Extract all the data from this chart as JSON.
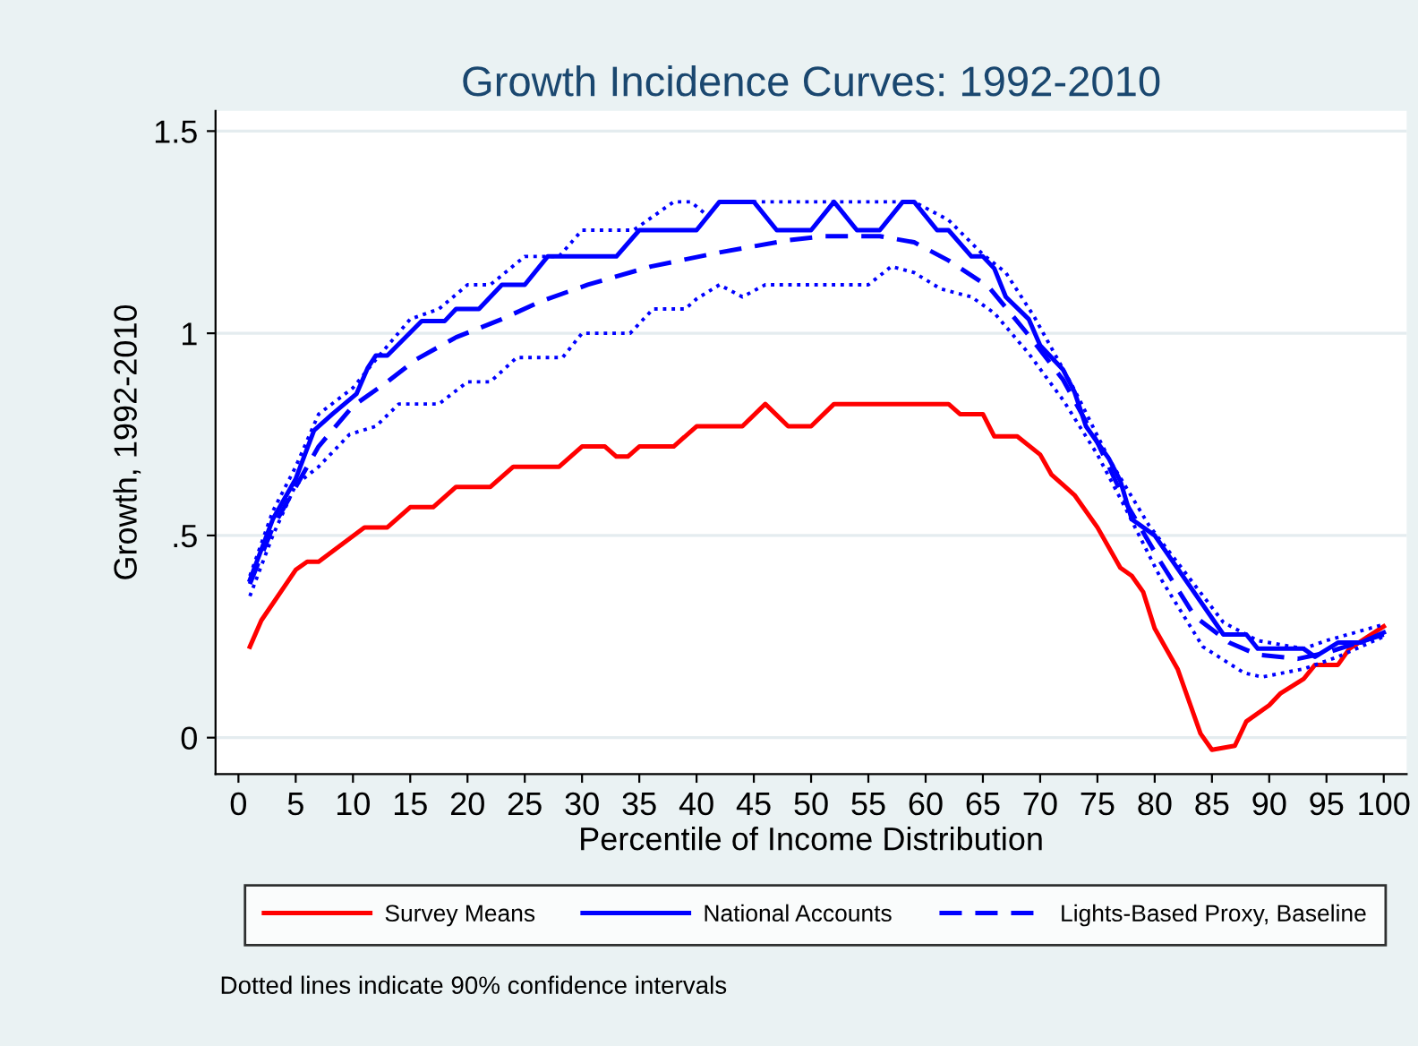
{
  "chart_data": {
    "type": "line",
    "title": "Growth Incidence Curves: 1992-2010",
    "xlabel": "Percentile of Income Distribution",
    "ylabel": "Growth, 1992-2010",
    "xlim": [
      -2,
      102
    ],
    "xticks": [
      0,
      5,
      10,
      15,
      20,
      25,
      30,
      35,
      40,
      45,
      50,
      55,
      60,
      65,
      70,
      75,
      80,
      85,
      90,
      95,
      100
    ],
    "ylim": [
      -0.09,
      1.55
    ],
    "yticks": [
      0,
      {
        "value": 0.5,
        "label": ".5"
      },
      1,
      1.5
    ],
    "grid": "y",
    "legend": "bottom",
    "marker": "none",
    "annotations": [
      "Dotted lines indicate 90% confidence intervals"
    ],
    "series": [
      {
        "name": "Survey Means",
        "color": "#ff0000",
        "line_style": "solid",
        "x": [
          1,
          2,
          5,
          6,
          7,
          11,
          13,
          15,
          17,
          19,
          22,
          24,
          28,
          30,
          32,
          33,
          34,
          35,
          38,
          40,
          44,
          46,
          48,
          50,
          52,
          62,
          63,
          65,
          66,
          68,
          70,
          71,
          72,
          73,
          75,
          77,
          78,
          79,
          80,
          82,
          84,
          85,
          87,
          88,
          90,
          91,
          93,
          94,
          96,
          97,
          100
        ],
        "values": [
          0.225,
          0.29,
          0.415,
          0.435,
          0.435,
          0.52,
          0.52,
          0.57,
          0.57,
          0.62,
          0.62,
          0.67,
          0.67,
          0.72,
          0.72,
          0.695,
          0.695,
          0.72,
          0.72,
          0.77,
          0.77,
          0.825,
          0.77,
          0.77,
          0.825,
          0.825,
          0.8,
          0.8,
          0.745,
          0.745,
          0.7,
          0.65,
          0.625,
          0.6,
          0.52,
          0.42,
          0.4,
          0.36,
          0.27,
          0.17,
          0.01,
          -0.03,
          -0.02,
          0.04,
          0.08,
          0.11,
          0.145,
          0.18,
          0.18,
          0.22,
          0.275
        ]
      },
      {
        "name": "National Accounts",
        "color": "#0000ff",
        "line_style": "solid",
        "x": [
          1,
          3,
          5,
          6.6,
          8.2,
          10.3,
          11.3,
          12,
          13,
          16,
          18,
          19,
          21,
          23,
          25,
          27,
          33,
          35,
          40,
          42,
          45,
          47,
          50,
          52,
          54,
          56,
          58,
          59,
          61,
          62,
          64,
          65,
          66,
          67,
          69,
          70,
          72,
          73,
          74,
          75,
          76,
          77,
          78,
          80,
          86,
          88,
          89,
          93,
          94,
          96,
          98,
          100
        ],
        "values": [
          0.39,
          0.54,
          0.64,
          0.76,
          0.8,
          0.85,
          0.915,
          0.945,
          0.945,
          1.03,
          1.03,
          1.06,
          1.06,
          1.12,
          1.12,
          1.19,
          1.19,
          1.255,
          1.255,
          1.325,
          1.325,
          1.255,
          1.255,
          1.325,
          1.255,
          1.255,
          1.325,
          1.325,
          1.255,
          1.255,
          1.19,
          1.19,
          1.16,
          1.09,
          1.035,
          0.97,
          0.91,
          0.855,
          0.77,
          0.73,
          0.69,
          0.635,
          0.54,
          0.5,
          0.255,
          0.255,
          0.22,
          0.22,
          0.2,
          0.235,
          0.235,
          0.26
        ]
      },
      {
        "name": "Lights-Based Proxy, Baseline",
        "color": "#0000ff",
        "line_style": "dashed",
        "x": [
          1,
          3,
          5,
          7,
          10,
          13,
          15.5,
          19,
          23,
          26.5,
          30.5,
          36,
          42,
          48,
          51,
          56,
          59,
          62,
          65.5,
          69,
          72,
          75,
          77.5,
          80.5,
          83.5,
          86.5,
          89,
          92.5,
          95,
          100
        ],
        "values": [
          0.38,
          0.52,
          0.62,
          0.72,
          0.82,
          0.88,
          0.935,
          0.99,
          1.035,
          1.08,
          1.12,
          1.165,
          1.2,
          1.23,
          1.24,
          1.24,
          1.225,
          1.18,
          1.115,
          0.995,
          0.885,
          0.73,
          0.58,
          0.435,
          0.3,
          0.235,
          0.205,
          0.195,
          0.21,
          0.255
        ]
      },
      {
        "color": "#0000ff",
        "line_style": "dotted",
        "x": [
          1,
          3,
          5,
          7,
          10,
          12,
          15,
          17.5,
          20,
          22,
          25,
          28,
          30,
          34.5,
          38,
          39.5,
          41,
          42,
          59,
          62,
          65,
          67,
          69.5,
          73,
          76,
          79.5,
          86,
          89,
          93,
          95,
          100
        ],
        "values": [
          0.4,
          0.56,
          0.67,
          0.8,
          0.865,
          0.935,
          1.035,
          1.06,
          1.12,
          1.12,
          1.19,
          1.19,
          1.255,
          1.255,
          1.325,
          1.325,
          1.29,
          1.325,
          1.325,
          1.28,
          1.195,
          1.15,
          1.04,
          0.86,
          0.69,
          0.525,
          0.285,
          0.24,
          0.22,
          0.24,
          0.28
        ]
      },
      {
        "color": "#0000ff",
        "line_style": "dotted",
        "x": [
          1,
          3,
          5,
          7,
          9.7,
          12,
          14,
          17.5,
          20,
          22,
          24.3,
          28.3,
          30,
          34.2,
          36.2,
          39,
          40,
          42,
          44,
          46,
          55,
          57,
          59,
          61.3,
          64,
          66,
          69,
          72,
          75,
          77.4,
          80.6,
          84.2,
          87.8,
          89.4,
          93,
          96,
          100
        ],
        "values": [
          0.35,
          0.5,
          0.625,
          0.67,
          0.75,
          0.77,
          0.825,
          0.825,
          0.88,
          0.88,
          0.94,
          0.94,
          1.0,
          1.0,
          1.06,
          1.06,
          1.085,
          1.12,
          1.09,
          1.12,
          1.12,
          1.165,
          1.15,
          1.11,
          1.09,
          1.05,
          0.95,
          0.835,
          0.7,
          0.57,
          0.39,
          0.225,
          0.16,
          0.15,
          0.17,
          0.2,
          0.25
        ]
      }
    ]
  }
}
